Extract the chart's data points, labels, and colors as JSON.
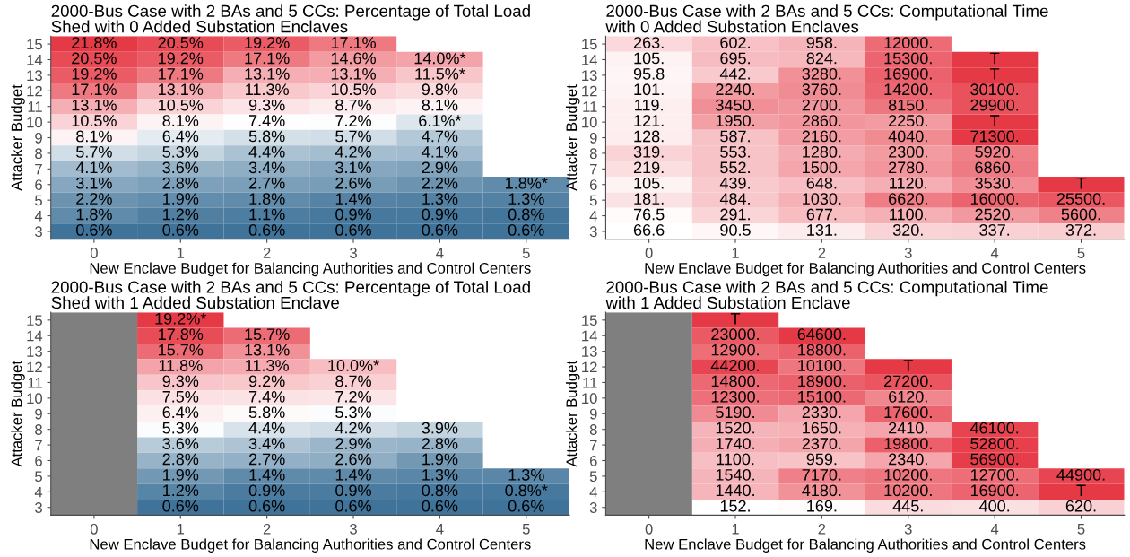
{
  "chart_data": [
    {
      "type": "heatmap",
      "title": "2000-Bus Case with 2 BAs and 5 CCs: Percentage of Total Load\nShed with 0 Added Substation Enclaves",
      "xlabel": "New Enclave Budget for Balancing Authorities and Control Centers",
      "ylabel": "Attacker Budget",
      "categories": [
        "0",
        "1",
        "2",
        "3",
        "4",
        "5"
      ],
      "y_categories": [
        "15",
        "14",
        "13",
        "12",
        "11",
        "10",
        "9",
        "8",
        "7",
        "6",
        "5",
        "4",
        "3"
      ],
      "cells": [
        [
          21.8,
          20.5,
          19.2,
          17.1,
          null,
          null
        ],
        [
          20.5,
          19.2,
          17.1,
          14.6,
          14.0,
          null
        ],
        [
          19.2,
          17.1,
          13.1,
          13.1,
          11.5,
          null
        ],
        [
          17.1,
          13.1,
          11.3,
          10.5,
          9.8,
          null
        ],
        [
          13.1,
          10.5,
          9.3,
          8.7,
          8.1,
          null
        ],
        [
          10.5,
          8.1,
          7.4,
          7.2,
          6.1,
          null
        ],
        [
          8.1,
          6.4,
          5.8,
          5.7,
          4.7,
          null
        ],
        [
          5.7,
          5.3,
          4.4,
          4.2,
          4.1,
          null
        ],
        [
          4.1,
          3.6,
          3.4,
          3.1,
          2.9,
          null
        ],
        [
          3.1,
          2.8,
          2.7,
          2.6,
          2.2,
          1.8
        ],
        [
          2.2,
          1.9,
          1.8,
          1.4,
          1.3,
          1.3
        ],
        [
          1.8,
          1.2,
          1.1,
          0.9,
          0.9,
          0.8
        ],
        [
          0.6,
          0.6,
          0.6,
          0.6,
          0.6,
          0.6
        ]
      ],
      "cell_labels": [
        [
          "21.8%",
          "20.5%",
          "19.2%",
          "17.1%",
          null,
          null
        ],
        [
          "20.5%",
          "19.2%",
          "17.1%",
          "14.6%",
          "14.0%*",
          null
        ],
        [
          "19.2%",
          "17.1%",
          "13.1%",
          "13.1%",
          "11.5%*",
          null
        ],
        [
          "17.1%",
          "13.1%",
          "11.3%",
          "10.5%",
          "9.8%",
          null
        ],
        [
          "13.1%",
          "10.5%",
          "9.3%",
          "8.7%",
          "8.1%",
          null
        ],
        [
          "10.5%",
          "8.1%",
          "7.4%",
          "7.2%",
          "6.1%*",
          null
        ],
        [
          "8.1%",
          "6.4%",
          "5.8%",
          "5.7%",
          "4.7%",
          null
        ],
        [
          "5.7%",
          "5.3%",
          "4.4%",
          "4.2%",
          "4.1%",
          null
        ],
        [
          "4.1%",
          "3.6%",
          "3.4%",
          "3.1%",
          "2.9%",
          null
        ],
        [
          "3.1%",
          "2.8%",
          "2.7%",
          "2.6%",
          "2.2%",
          "1.8%*"
        ],
        [
          "2.2%",
          "1.9%",
          "1.8%",
          "1.4%",
          "1.3%",
          "1.3%"
        ],
        [
          "1.8%",
          "1.2%",
          "1.1%",
          "0.9%",
          "0.9%",
          "0.8%"
        ],
        [
          "0.6%",
          "0.6%",
          "0.6%",
          "0.6%",
          "0.6%",
          "0.6%"
        ]
      ]
    },
    {
      "type": "heatmap",
      "title": "2000-Bus Case with 2 BAs and 5 CCs: Computational Time\nwith 0 Added Substation Enclaves",
      "xlabel": "New Enclave Budget for Balancing Authorities and Control Centers",
      "ylabel": "Attacker Budget",
      "categories": [
        "0",
        "1",
        "2",
        "3",
        "4",
        "5"
      ],
      "y_categories": [
        "15",
        "14",
        "13",
        "12",
        "11",
        "10",
        "9",
        "8",
        "7",
        "6",
        "5",
        "4",
        "3"
      ],
      "cells": [
        [
          263,
          602,
          958,
          12000,
          null,
          null
        ],
        [
          105,
          695,
          824,
          15300,
          null,
          null
        ],
        [
          95.8,
          442,
          3280,
          16900,
          null,
          null
        ],
        [
          101,
          2240,
          3760,
          14200,
          30100,
          null
        ],
        [
          119,
          3450,
          2700,
          8150,
          29900,
          null
        ],
        [
          121,
          1950,
          2860,
          2250,
          null,
          null
        ],
        [
          128,
          587,
          2160,
          4040,
          71300,
          null
        ],
        [
          319,
          553,
          1280,
          2300,
          5920,
          null
        ],
        [
          219,
          552,
          1500,
          2780,
          6860,
          null
        ],
        [
          105,
          439,
          648,
          1120,
          3530,
          null
        ],
        [
          181,
          484,
          1030,
          6620,
          16000,
          25500
        ],
        [
          76.5,
          291,
          677,
          1100,
          2520,
          5600
        ],
        [
          66.6,
          90.5,
          131,
          320,
          337,
          372
        ]
      ],
      "cell_labels": [
        [
          "263.",
          "602.",
          "958.",
          "12000.",
          null,
          null
        ],
        [
          "105.",
          "695.",
          "824.",
          "15300.",
          "T",
          null
        ],
        [
          "95.8",
          "442.",
          "3280.",
          "16900.",
          "T",
          null
        ],
        [
          "101.",
          "2240.",
          "3760.",
          "14200.",
          "30100.",
          null
        ],
        [
          "119.",
          "3450.",
          "2700.",
          "8150.",
          "29900.",
          null
        ],
        [
          "121.",
          "1950.",
          "2860.",
          "2250.",
          "T",
          null
        ],
        [
          "128.",
          "587.",
          "2160.",
          "4040.",
          "71300.",
          null
        ],
        [
          "319.",
          "553.",
          "1280.",
          "2300.",
          "5920.",
          null
        ],
        [
          "219.",
          "552.",
          "1500.",
          "2780.",
          "6860.",
          null
        ],
        [
          "105.",
          "439.",
          "648.",
          "1120.",
          "3530.",
          "T"
        ],
        [
          "181.",
          "484.",
          "1030.",
          "6620.",
          "16000.",
          "25500."
        ],
        [
          "76.5",
          "291.",
          "677.",
          "1100.",
          "2520.",
          "5600."
        ],
        [
          "66.6",
          "90.5",
          "131.",
          "320.",
          "337.",
          "372."
        ]
      ]
    },
    {
      "type": "heatmap",
      "title": "2000-Bus Case with 2 BAs and 5 CCs: Percentage of Total Load\nShed with 1 Added Substation Enclave",
      "xlabel": "New Enclave Budget for Balancing Authorities and Control Centers",
      "ylabel": "Attacker Budget",
      "categories": [
        "0",
        "1",
        "2",
        "3",
        "4",
        "5"
      ],
      "y_categories": [
        "15",
        "14",
        "13",
        "12",
        "11",
        "10",
        "9",
        "8",
        "7",
        "6",
        "5",
        "4",
        "3"
      ],
      "bands": [
        {
          "axis": "x",
          "from": "0",
          "to": "0",
          "color": "#7f7f7f"
        }
      ],
      "cells": [
        [
          null,
          19.2,
          null,
          null,
          null,
          null
        ],
        [
          null,
          17.8,
          15.7,
          null,
          null,
          null
        ],
        [
          null,
          15.7,
          13.1,
          null,
          null,
          null
        ],
        [
          null,
          11.8,
          11.3,
          10.0,
          null,
          null
        ],
        [
          null,
          9.3,
          9.2,
          8.7,
          null,
          null
        ],
        [
          null,
          7.5,
          7.4,
          7.2,
          null,
          null
        ],
        [
          null,
          6.4,
          5.8,
          5.3,
          null,
          null
        ],
        [
          null,
          5.3,
          4.4,
          4.2,
          3.9,
          null
        ],
        [
          null,
          3.6,
          3.4,
          2.9,
          2.8,
          null
        ],
        [
          null,
          2.8,
          2.7,
          2.6,
          1.9,
          null
        ],
        [
          null,
          1.9,
          1.4,
          1.4,
          1.3,
          1.3
        ],
        [
          null,
          1.2,
          0.9,
          0.9,
          0.8,
          0.8
        ],
        [
          null,
          0.6,
          0.6,
          0.6,
          0.6,
          0.6
        ]
      ],
      "cell_labels": [
        [
          null,
          "19.2%*",
          null,
          null,
          null,
          null
        ],
        [
          null,
          "17.8%",
          "15.7%",
          null,
          null,
          null
        ],
        [
          null,
          "15.7%",
          "13.1%",
          null,
          null,
          null
        ],
        [
          null,
          "11.8%",
          "11.3%",
          "10.0%*",
          null,
          null
        ],
        [
          null,
          "9.3%",
          "9.2%",
          "8.7%",
          null,
          null
        ],
        [
          null,
          "7.5%",
          "7.4%",
          "7.2%",
          null,
          null
        ],
        [
          null,
          "6.4%",
          "5.8%",
          "5.3%",
          null,
          null
        ],
        [
          null,
          "5.3%",
          "4.4%",
          "4.2%",
          "3.9%",
          null
        ],
        [
          null,
          "3.6%",
          "3.4%",
          "2.9%",
          "2.8%",
          null
        ],
        [
          null,
          "2.8%",
          "2.7%",
          "2.6%",
          "1.9%",
          null
        ],
        [
          null,
          "1.9%",
          "1.4%",
          "1.4%",
          "1.3%",
          "1.3%"
        ],
        [
          null,
          "1.2%",
          "0.9%",
          "0.9%",
          "0.8%",
          "0.8%*"
        ],
        [
          null,
          "0.6%",
          "0.6%",
          "0.6%",
          "0.6%",
          "0.6%"
        ]
      ]
    },
    {
      "type": "heatmap",
      "title": "2000-Bus Case with 2 BAs and 5 CCs: Computational Time\nwith 1 Added Substation Enclave",
      "xlabel": "New Enclave Budget for Balancing Authorities and Control Centers",
      "ylabel": "Attacker Budget",
      "categories": [
        "0",
        "1",
        "2",
        "3",
        "4",
        "5"
      ],
      "y_categories": [
        "15",
        "14",
        "13",
        "12",
        "11",
        "10",
        "9",
        "8",
        "7",
        "6",
        "5",
        "4",
        "3"
      ],
      "bands": [
        {
          "axis": "x",
          "from": "0",
          "to": "0",
          "color": "#7f7f7f"
        }
      ],
      "cells": [
        [
          null,
          null,
          null,
          null,
          null,
          null
        ],
        [
          null,
          23000,
          64600,
          null,
          null,
          null
        ],
        [
          null,
          12900,
          18800,
          null,
          null,
          null
        ],
        [
          null,
          44200,
          10100,
          null,
          null,
          null
        ],
        [
          null,
          14800,
          18900,
          27200,
          null,
          null
        ],
        [
          null,
          12300,
          15100,
          6120,
          null,
          null
        ],
        [
          null,
          5190,
          2330,
          17600,
          null,
          null
        ],
        [
          null,
          1520,
          1650,
          2410,
          46100,
          null
        ],
        [
          null,
          1740,
          2370,
          19800,
          52800,
          null
        ],
        [
          null,
          1100,
          959,
          2340,
          56900,
          null
        ],
        [
          null,
          1540,
          7170,
          10200,
          12700,
          44900
        ],
        [
          null,
          1440,
          4180,
          10200,
          16900,
          null
        ],
        [
          null,
          152,
          169,
          445,
          400,
          620
        ]
      ],
      "cell_labels": [
        [
          null,
          "T",
          null,
          null,
          null,
          null
        ],
        [
          null,
          "23000.",
          "64600.",
          null,
          null,
          null
        ],
        [
          null,
          "12900.",
          "18800.",
          null,
          null,
          null
        ],
        [
          null,
          "44200.",
          "10100.",
          "T",
          null,
          null
        ],
        [
          null,
          "14800.",
          "18900.",
          "27200.",
          null,
          null
        ],
        [
          null,
          "12300.",
          "15100.",
          "6120.",
          null,
          null
        ],
        [
          null,
          "5190.",
          "2330.",
          "17600.",
          null,
          null
        ],
        [
          null,
          "1520.",
          "1650.",
          "2410.",
          "46100.",
          null
        ],
        [
          null,
          "1740.",
          "2370.",
          "19800.",
          "52800.",
          null
        ],
        [
          null,
          "1100.",
          "959.",
          "2340.",
          "56900.",
          null
        ],
        [
          null,
          "1540.",
          "7170.",
          "10200.",
          "12700.",
          "44900."
        ],
        [
          null,
          "1440.",
          "4180.",
          "10200.",
          "16900.",
          "T"
        ],
        [
          null,
          "152.",
          "169.",
          "445.",
          "400.",
          "620."
        ]
      ]
    }
  ]
}
